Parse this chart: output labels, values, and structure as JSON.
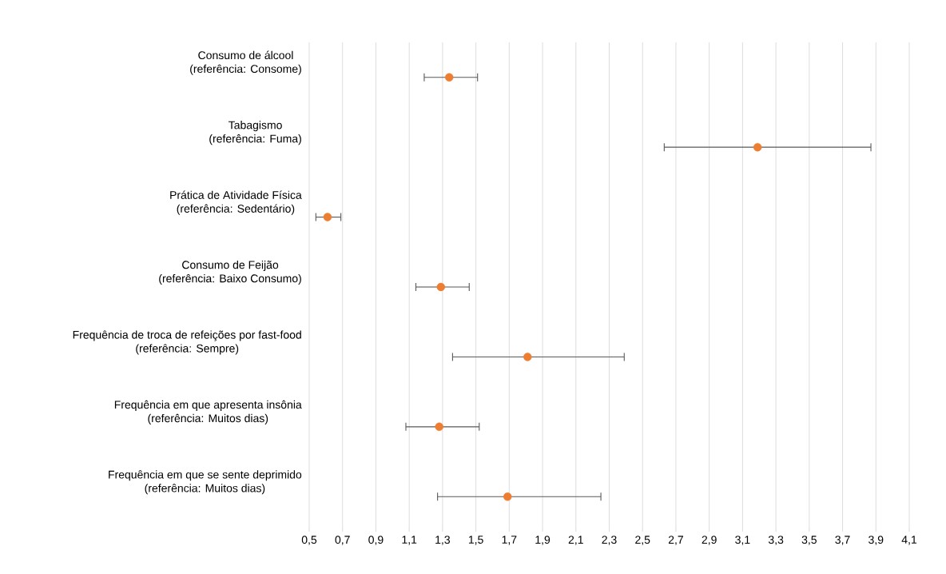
{
  "chart_data": {
    "type": "scatter",
    "orientation": "horizontal",
    "categories": [
      "Consumo de álcool\n(referência: Consome)",
      "Tabagismo\n(referência: Fuma)",
      "Prática de Atividade Física\n(referência: Sedentário)",
      "Consumo de Feijão\n(referência: Baixo Consumo)",
      "Frequência de troca de refeições por fast-food\n(referência: Sempre)",
      "Frequência em que apresenta insônia\n(referência: Muitos dias)",
      "Frequência em que se sente deprimido\n(referência: Muitos dias)"
    ],
    "values": [
      1.34,
      3.19,
      0.61,
      1.29,
      1.81,
      1.28,
      1.69
    ],
    "errors": [
      [
        1.19,
        1.51
      ],
      [
        2.63,
        3.87
      ],
      [
        0.54,
        0.69
      ],
      [
        1.14,
        1.46
      ],
      [
        1.36,
        2.39
      ],
      [
        1.08,
        1.52
      ],
      [
        1.27,
        2.25
      ]
    ],
    "color": "#ed7d31",
    "marker": "circle",
    "grid": "x",
    "xlim": [
      0.5,
      4.1
    ],
    "xticks": [
      {
        "value": 0.5,
        "label": "0,5"
      },
      {
        "value": 0.7,
        "label": "0,7"
      },
      {
        "value": 0.9,
        "label": "0,9"
      },
      {
        "value": 1.1,
        "label": "1,1"
      },
      {
        "value": 1.3,
        "label": "1,3"
      },
      {
        "value": 1.5,
        "label": "1,5"
      },
      {
        "value": 1.7,
        "label": "1,7"
      },
      {
        "value": 1.9,
        "label": "1,9"
      },
      {
        "value": 2.1,
        "label": "2,1"
      },
      {
        "value": 2.3,
        "label": "2,3"
      },
      {
        "value": 2.5,
        "label": "2,5"
      },
      {
        "value": 2.7,
        "label": "2,7"
      },
      {
        "value": 2.9,
        "label": "2,9"
      },
      {
        "value": 3.1,
        "label": "3,1"
      },
      {
        "value": 3.3,
        "label": "3,3"
      },
      {
        "value": 3.5,
        "label": "3,5"
      },
      {
        "value": 3.7,
        "label": "3,7"
      },
      {
        "value": 3.9,
        "label": "3,9"
      },
      {
        "value": 4.1,
        "label": "4,1"
      }
    ]
  }
}
